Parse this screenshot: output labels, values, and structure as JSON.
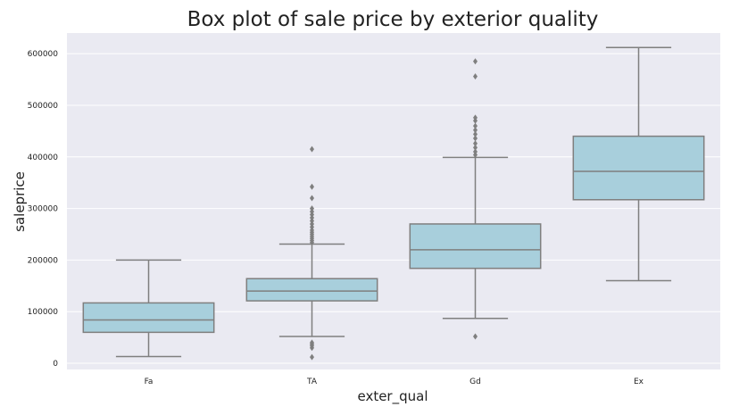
{
  "chart_data": {
    "type": "box",
    "title": "Box plot of sale price by exterior quality",
    "xlabel": "exter_qual",
    "ylabel": "saleprice",
    "ylim": [
      -12000,
      640000
    ],
    "yticks": [
      0,
      100000,
      200000,
      300000,
      400000,
      500000,
      600000
    ],
    "ytick_labels": [
      "0",
      "100000",
      "200000",
      "300000",
      "400000",
      "500000",
      "600000"
    ],
    "grid": true,
    "colors": {
      "background": "#eaeaf2",
      "grid": "#ffffff",
      "box_fill": "#a8cfdc",
      "line": "#7f7f7f"
    },
    "categories": [
      "Fa",
      "TA",
      "Gd",
      "Ex"
    ],
    "boxes": [
      {
        "category": "Fa",
        "whisker_low": 13000,
        "q1": 60000,
        "median": 84000,
        "q3": 117000,
        "whisker_high": 200000,
        "outliers": []
      },
      {
        "category": "TA",
        "whisker_low": 52000,
        "q1": 121000,
        "median": 140000,
        "q3": 164000,
        "whisker_high": 231000,
        "outliers": [
          12000,
          30000,
          34000,
          37000,
          40000,
          234000,
          238000,
          242000,
          246000,
          250000,
          254000,
          258000,
          264000,
          270000,
          276000,
          282000,
          288000,
          294000,
          300000,
          320000,
          342000,
          415000
        ]
      },
      {
        "category": "Gd",
        "whisker_low": 87000,
        "q1": 184000,
        "median": 220000,
        "q3": 270000,
        "whisker_high": 399000,
        "outliers": [
          52000,
          404000,
          410000,
          418000,
          426000,
          436000,
          444000,
          452000,
          460000,
          470000,
          476000,
          556000,
          585000
        ]
      },
      {
        "category": "Ex",
        "whisker_low": 160000,
        "q1": 317000,
        "median": 372000,
        "q3": 440000,
        "whisker_high": 612000,
        "outliers": []
      }
    ]
  }
}
